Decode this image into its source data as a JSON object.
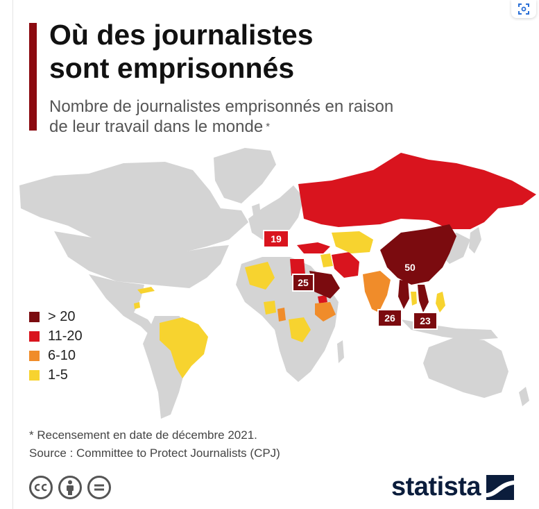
{
  "header": {
    "title_line1": "Où des journalistes",
    "title_line2": "sont emprisonnés",
    "subtitle_line1": "Nombre de journalistes emprisonnés en raison",
    "subtitle_line2": "de leur travail dans le monde",
    "subtitle_mark": "*"
  },
  "colors": {
    "gt20": "#7b0b0f",
    "c11_20": "#d9141e",
    "c6_10": "#f08c2a",
    "c1_5": "#f7d32f",
    "none": "#d4d4d4",
    "accent_bar": "#8b0a10"
  },
  "map_labels": [
    {
      "id": "turkey",
      "value": "19"
    },
    {
      "id": "china",
      "value": "50"
    },
    {
      "id": "saudi-arabia",
      "value": "25"
    },
    {
      "id": "myanmar",
      "value": "26"
    },
    {
      "id": "vietnam",
      "value": "23"
    }
  ],
  "legend": [
    {
      "label": "> 20",
      "color": "#7b0b0f"
    },
    {
      "label": "11-20",
      "color": "#d9141e"
    },
    {
      "label": "6-10",
      "color": "#f08c2a"
    },
    {
      "label": "1-5",
      "color": "#f7d32f"
    }
  ],
  "footer": {
    "note": "* Recensement en date de décembre 2021.",
    "source": "Source : Committee to Protect Journalists (CPJ)",
    "brand": "statista"
  },
  "icons": {
    "expand": "expand-icon",
    "cc": "cc-icon",
    "by": "person-icon",
    "nd": "equals-icon"
  }
}
